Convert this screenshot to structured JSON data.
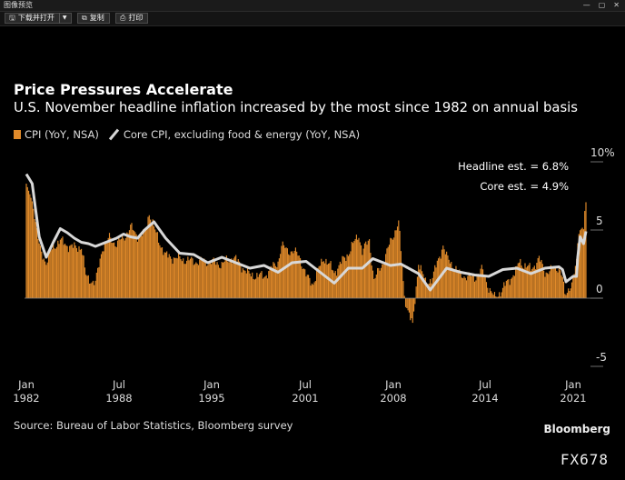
{
  "window": {
    "title": "图像预览",
    "controls": [
      "—",
      "▢",
      "✕"
    ]
  },
  "toolbar": {
    "download_open_label": "下载并打开",
    "copy_label": "复制",
    "print_label": "打印"
  },
  "chart_data": {
    "type": "bar",
    "title": "Price Pressures Accelerate",
    "subtitle": "U.S. November headline inflation increased by the most since 1982 on annual basis",
    "legend": [
      {
        "label": "CPI (YoY, NSA)",
        "color": "#e08a2a",
        "kind": "bar"
      },
      {
        "label": "Core CPI, excluding food & energy (YoY, NSA)",
        "color": "#d8d8d8",
        "kind": "line"
      }
    ],
    "legend_position": "top-left",
    "x_ticks": [
      {
        "month": "Jan",
        "year": "1982"
      },
      {
        "month": "Jul",
        "year": "1988"
      },
      {
        "month": "Jan",
        "year": "1995"
      },
      {
        "month": "Jul",
        "year": "2001"
      },
      {
        "month": "Jan",
        "year": "2008"
      },
      {
        "month": "Jul",
        "year": "2014"
      },
      {
        "month": "Jan",
        "year": "2021"
      }
    ],
    "y_axis": {
      "position": "right",
      "min": -6,
      "max": 10,
      "ticks": [
        "10%",
        "5",
        "0",
        "-5"
      ]
    },
    "annotations": [
      "Headline est. = 6.8%",
      "Core est. = 4.9%"
    ],
    "x_range": [
      "Jan 1982",
      "Nov 2021"
    ],
    "series": [
      {
        "name": "CPI (YoY, NSA)",
        "type": "bar",
        "color": "#e08a2a",
        "keypoints": [
          [
            "1982-01",
            8.4
          ],
          [
            "1982-06",
            7.1
          ],
          [
            "1982-12",
            3.8
          ],
          [
            "1983-06",
            2.6
          ],
          [
            "1983-12",
            3.8
          ],
          [
            "1984-06",
            4.2
          ],
          [
            "1984-12",
            3.9
          ],
          [
            "1985-06",
            3.7
          ],
          [
            "1985-12",
            3.8
          ],
          [
            "1986-04",
            1.6
          ],
          [
            "1986-12",
            1.1
          ],
          [
            "1987-06",
            3.7
          ],
          [
            "1987-12",
            4.4
          ],
          [
            "1988-06",
            4.0
          ],
          [
            "1988-12",
            4.4
          ],
          [
            "1989-06",
            5.2
          ],
          [
            "1989-12",
            4.6
          ],
          [
            "1990-06",
            4.7
          ],
          [
            "1990-10",
            6.3
          ],
          [
            "1991-03",
            4.9
          ],
          [
            "1991-12",
            3.1
          ],
          [
            "1992-12",
            2.9
          ],
          [
            "1993-12",
            2.7
          ],
          [
            "1994-12",
            2.7
          ],
          [
            "1995-12",
            2.5
          ],
          [
            "1996-10",
            3.0
          ],
          [
            "1997-12",
            1.7
          ],
          [
            "1998-12",
            1.6
          ],
          [
            "1999-12",
            2.7
          ],
          [
            "2000-03",
            3.8
          ],
          [
            "2000-12",
            3.4
          ],
          [
            "2001-06",
            3.2
          ],
          [
            "2001-12",
            1.6
          ],
          [
            "2002-06",
            1.1
          ],
          [
            "2002-12",
            2.4
          ],
          [
            "2003-03",
            3.0
          ],
          [
            "2003-12",
            1.9
          ],
          [
            "2004-12",
            3.3
          ],
          [
            "2005-09",
            4.7
          ],
          [
            "2005-12",
            3.4
          ],
          [
            "2006-06",
            4.3
          ],
          [
            "2006-10",
            1.3
          ],
          [
            "2007-06",
            2.7
          ],
          [
            "2007-12",
            4.1
          ],
          [
            "2008-07",
            5.6
          ],
          [
            "2008-12",
            0.1
          ],
          [
            "2009-07",
            -2.1
          ],
          [
            "2009-12",
            2.7
          ],
          [
            "2010-06",
            1.1
          ],
          [
            "2010-12",
            1.5
          ],
          [
            "2011-09",
            3.9
          ],
          [
            "2011-12",
            3.0
          ],
          [
            "2012-12",
            1.7
          ],
          [
            "2013-12",
            1.5
          ],
          [
            "2014-06",
            2.1
          ],
          [
            "2014-12",
            0.8
          ],
          [
            "2015-05",
            0.0
          ],
          [
            "2015-12",
            0.7
          ],
          [
            "2016-12",
            2.1
          ],
          [
            "2017-02",
            2.7
          ],
          [
            "2017-12",
            2.1
          ],
          [
            "2018-07",
            2.9
          ],
          [
            "2018-12",
            1.9
          ],
          [
            "2019-12",
            2.3
          ],
          [
            "2020-03",
            1.5
          ],
          [
            "2020-05",
            0.1
          ],
          [
            "2020-12",
            1.4
          ],
          [
            "2021-03",
            2.6
          ],
          [
            "2021-05",
            5.0
          ],
          [
            "2021-09",
            5.4
          ],
          [
            "2021-10",
            6.2
          ],
          [
            "2021-11",
            6.8
          ]
        ]
      },
      {
        "name": "Core CPI, excluding food & energy (YoY, NSA)",
        "type": "line",
        "color": "#d8d8d8",
        "keypoints": [
          [
            "1982-01",
            9.1
          ],
          [
            "1982-06",
            8.4
          ],
          [
            "1982-12",
            4.5
          ],
          [
            "1983-06",
            3.0
          ],
          [
            "1983-12",
            4.1
          ],
          [
            "1984-06",
            5.1
          ],
          [
            "1984-12",
            4.8
          ],
          [
            "1985-06",
            4.4
          ],
          [
            "1985-12",
            4.1
          ],
          [
            "1986-06",
            4.0
          ],
          [
            "1986-12",
            3.8
          ],
          [
            "1987-06",
            4.0
          ],
          [
            "1987-12",
            4.2
          ],
          [
            "1988-06",
            4.4
          ],
          [
            "1988-12",
            4.7
          ],
          [
            "1989-06",
            4.5
          ],
          [
            "1989-12",
            4.4
          ],
          [
            "1990-06",
            5.0
          ],
          [
            "1991-02",
            5.6
          ],
          [
            "1991-12",
            4.4
          ],
          [
            "1992-12",
            3.3
          ],
          [
            "1993-12",
            3.2
          ],
          [
            "1994-12",
            2.6
          ],
          [
            "1995-12",
            3.0
          ],
          [
            "1996-12",
            2.6
          ],
          [
            "1997-12",
            2.2
          ],
          [
            "1998-12",
            2.4
          ],
          [
            "1999-12",
            1.9
          ],
          [
            "2000-12",
            2.6
          ],
          [
            "2001-12",
            2.7
          ],
          [
            "2002-12",
            1.9
          ],
          [
            "2003-12",
            1.1
          ],
          [
            "2004-12",
            2.2
          ],
          [
            "2005-12",
            2.2
          ],
          [
            "2006-09",
            2.9
          ],
          [
            "2007-12",
            2.4
          ],
          [
            "2008-09",
            2.5
          ],
          [
            "2009-12",
            1.8
          ],
          [
            "2010-10",
            0.6
          ],
          [
            "2011-12",
            2.2
          ],
          [
            "2012-12",
            1.9
          ],
          [
            "2013-12",
            1.7
          ],
          [
            "2014-12",
            1.6
          ],
          [
            "2015-12",
            2.1
          ],
          [
            "2016-12",
            2.2
          ],
          [
            "2017-12",
            1.8
          ],
          [
            "2018-12",
            2.2
          ],
          [
            "2019-12",
            2.3
          ],
          [
            "2020-03",
            2.1
          ],
          [
            "2020-06",
            1.2
          ],
          [
            "2020-12",
            1.6
          ],
          [
            "2021-03",
            1.6
          ],
          [
            "2021-04",
            3.0
          ],
          [
            "2021-06",
            4.5
          ],
          [
            "2021-09",
            4.0
          ],
          [
            "2021-11",
            4.9
          ]
        ]
      }
    ]
  },
  "source": "Source: Bureau of Labor Statistics, Bloomberg survey",
  "brand": "Bloomberg",
  "code": "FX678"
}
